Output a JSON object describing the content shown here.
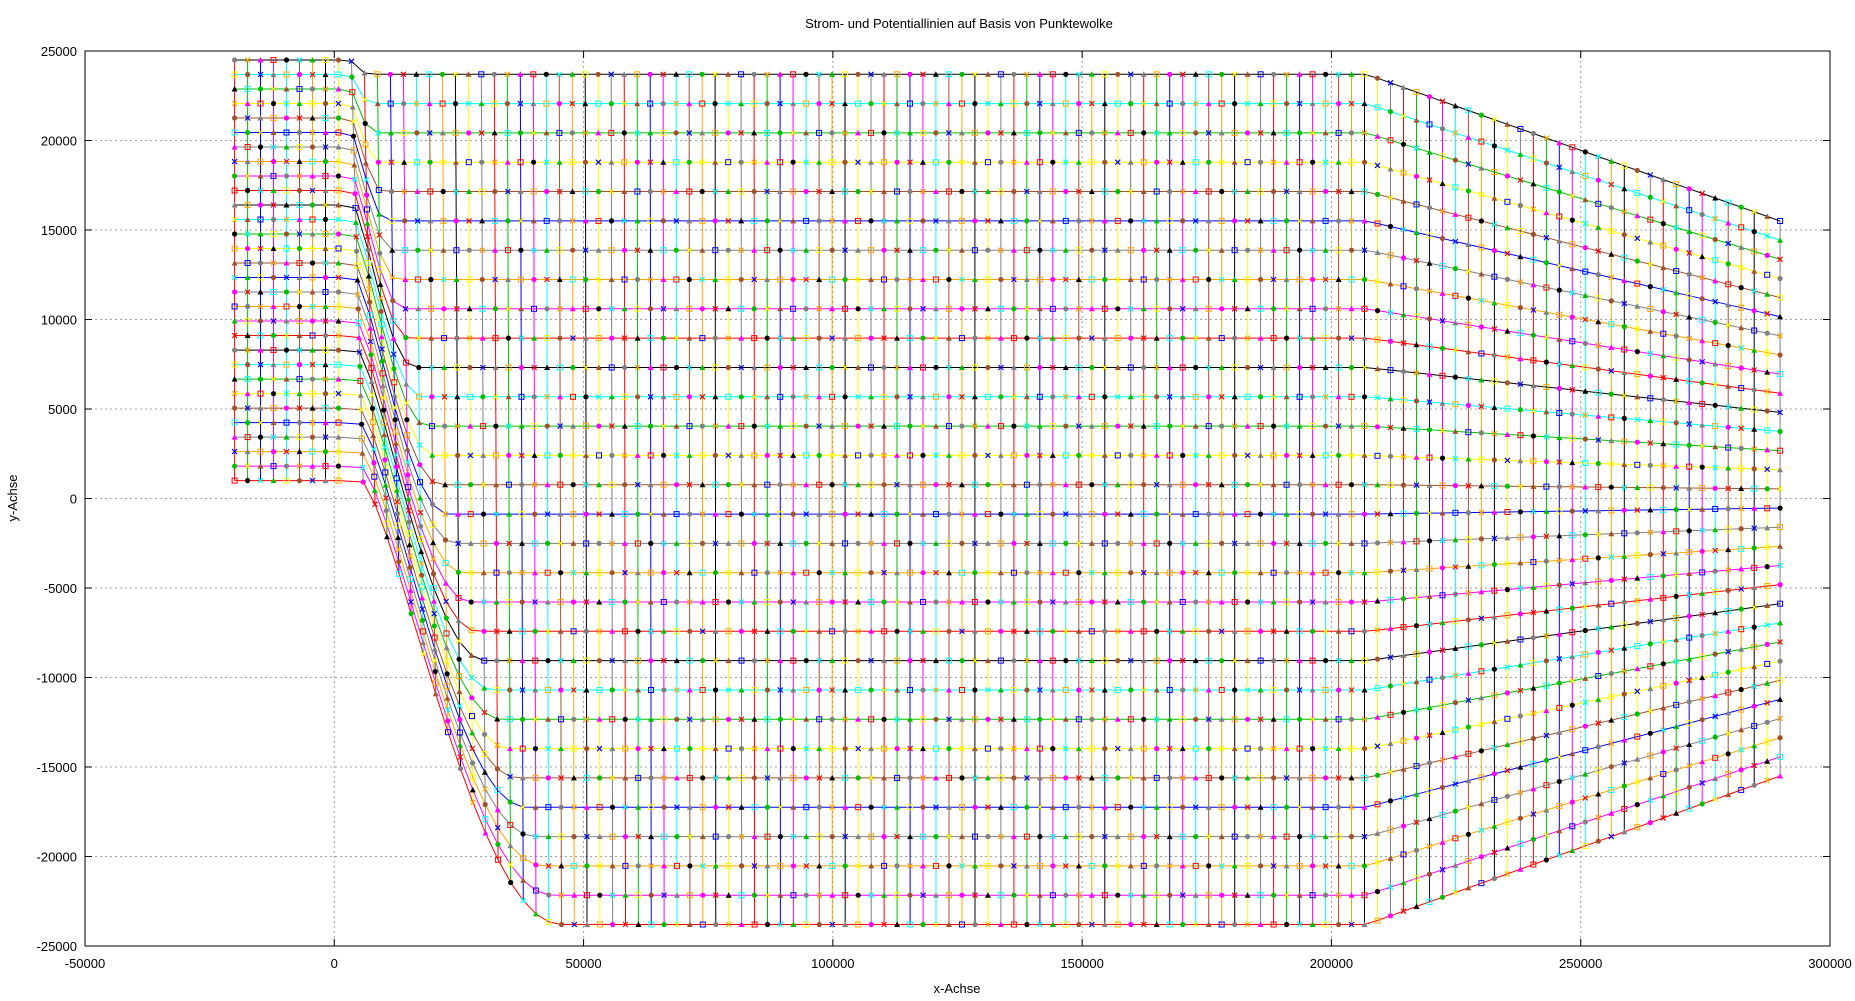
{
  "chart_data": {
    "type": "line",
    "title": "Strom- und Potentiallinien auf Basis von Punktewolke",
    "xlabel": "x-Achse",
    "ylabel": "y-Achse",
    "xlim": [
      -50000,
      300000
    ],
    "ylim": [
      -25000,
      25000
    ],
    "x_ticks": [
      "-50000",
      "0",
      "50000",
      "100000",
      "150000",
      "200000",
      "250000",
      "300000"
    ],
    "y_ticks": [
      "25000",
      "20000",
      "15000",
      "10000",
      "5000",
      "0",
      "-5000",
      "-10000",
      "-15000",
      "-20000",
      "-25000"
    ],
    "grid": true,
    "legend": "none",
    "series_colors": [
      "#ff0000",
      "#00c000",
      "#0000ff",
      "#ff00ff",
      "#00ffff",
      "#a0522d",
      "#ffa500",
      "#000000",
      "#ffff00",
      "#808080"
    ],
    "grid_structure": {
      "streamlines": {
        "count": 30,
        "inlet_x": -20000,
        "inlet_y_range": [
          1000,
          24500
        ],
        "channel_start_x": 0,
        "channel_end_x": 207000,
        "channel_y_range": [
          -23800,
          23700
        ],
        "outlet_x": 290000,
        "outlet_y_range": [
          -15500,
          15500
        ]
      },
      "potential_lines": {
        "count": 120,
        "x_range": [
          -20000,
          290000
        ]
      }
    }
  }
}
